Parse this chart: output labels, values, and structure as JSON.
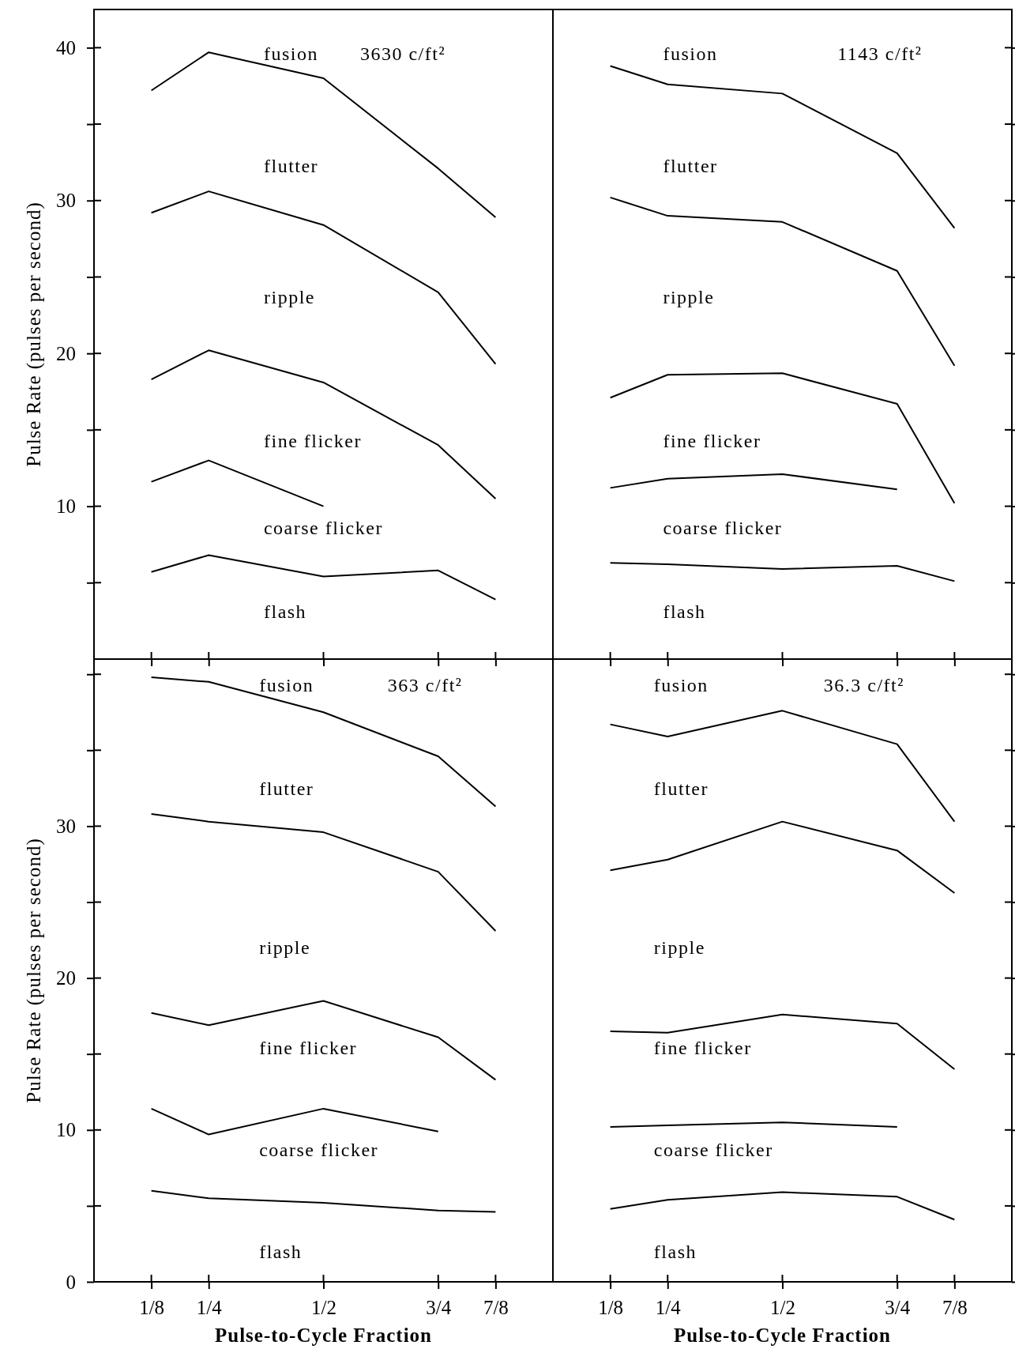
{
  "chart_data": [
    {
      "type": "line",
      "tick_labels": "y",
      "ylabel": "Pulse Rate (pulses per second)",
      "xlim": [
        0,
        1
      ],
      "ylim": [
        0,
        42.5
      ],
      "xticks": [
        {
          "value": 0.125,
          "label": null
        },
        {
          "value": 0.25,
          "label": null
        },
        {
          "value": 0.5,
          "label": null
        },
        {
          "value": 0.75,
          "label": null
        },
        {
          "value": 0.875,
          "label": null
        }
      ],
      "yticks": [
        {
          "value": 5,
          "label": null
        },
        10,
        {
          "value": 15,
          "label": null
        },
        20,
        {
          "value": 25,
          "label": null
        },
        30,
        {
          "value": 35,
          "label": null
        },
        40
      ],
      "series": [
        {
          "color": "#000000",
          "x": [
            0.125,
            0.25,
            0.5,
            0.75,
            0.875
          ],
          "values": [
            37.2,
            39.7,
            38.0,
            32.1,
            28.9
          ]
        },
        {
          "color": "#000000",
          "x": [
            0.125,
            0.25,
            0.5,
            0.75,
            0.875
          ],
          "values": [
            29.2,
            30.6,
            28.4,
            24.0,
            19.3
          ]
        },
        {
          "color": "#000000",
          "x": [
            0.125,
            0.25,
            0.5,
            0.75,
            0.875
          ],
          "values": [
            18.3,
            20.2,
            18.1,
            14.0,
            10.5
          ]
        },
        {
          "color": "#000000",
          "x": [
            0.125,
            0.25,
            0.5
          ],
          "values": [
            11.6,
            13.0,
            10.0
          ]
        },
        {
          "color": "#000000",
          "x": [
            0.125,
            0.25,
            0.5,
            0.75,
            0.875
          ],
          "values": [
            5.7,
            6.8,
            5.4,
            5.8,
            3.9
          ]
        }
      ],
      "annotations": [
        "fusion",
        "3630 c/ft²",
        "flutter",
        "ripple",
        "fine flicker",
        "coarse flicker",
        "flash"
      ]
    },
    {
      "type": "line",
      "tick_labels": false,
      "xlim": [
        0,
        1
      ],
      "ylim": [
        0,
        42.5
      ],
      "xticks": [
        {
          "value": 0.125,
          "label": null
        },
        {
          "value": 0.25,
          "label": null
        },
        {
          "value": 0.5,
          "label": null
        },
        {
          "value": 0.75,
          "label": null
        },
        {
          "value": 0.875,
          "label": null
        }
      ],
      "yticks": [
        {
          "value": 5,
          "label": null
        },
        {
          "value": 10,
          "label": null
        },
        {
          "value": 15,
          "label": null
        },
        {
          "value": 20,
          "label": null
        },
        {
          "value": 25,
          "label": null
        },
        {
          "value": 30,
          "label": null
        },
        {
          "value": 35,
          "label": null
        },
        {
          "value": 40,
          "label": null
        }
      ],
      "series": [
        {
          "color": "#000000",
          "x": [
            0.125,
            0.25,
            0.5,
            0.75,
            0.875
          ],
          "values": [
            38.8,
            37.6,
            37.0,
            33.1,
            28.2
          ]
        },
        {
          "color": "#000000",
          "x": [
            0.125,
            0.25,
            0.5,
            0.75,
            0.875
          ],
          "values": [
            30.2,
            29.0,
            28.6,
            25.4,
            19.2
          ]
        },
        {
          "color": "#000000",
          "x": [
            0.125,
            0.25,
            0.5,
            0.75,
            0.875
          ],
          "values": [
            17.1,
            18.6,
            18.7,
            16.7,
            10.2
          ]
        },
        {
          "color": "#000000",
          "x": [
            0.125,
            0.25,
            0.5,
            0.75
          ],
          "values": [
            11.2,
            11.8,
            12.1,
            11.1
          ]
        },
        {
          "color": "#000000",
          "x": [
            0.125,
            0.25,
            0.5,
            0.75,
            0.875
          ],
          "values": [
            6.3,
            6.2,
            5.9,
            6.1,
            5.1
          ]
        }
      ],
      "annotations": [
        "fusion",
        "1143 c/ft²",
        "flutter",
        "ripple",
        "fine flicker",
        "coarse flicker",
        "flash"
      ]
    },
    {
      "type": "line",
      "ylabel": "Pulse Rate (pulses per second)",
      "xlabel": "Pulse-to-Cycle Fraction",
      "xlim": [
        0,
        1
      ],
      "ylim": [
        0,
        41
      ],
      "xticks": [
        {
          "value": 0.125,
          "label": "1/8"
        },
        {
          "value": 0.25,
          "label": "1/4"
        },
        {
          "value": 0.5,
          "label": "1/2"
        },
        {
          "value": 0.75,
          "label": "3/4"
        },
        {
          "value": 0.875,
          "label": "7/8"
        }
      ],
      "yticks": [
        0,
        {
          "value": 5,
          "label": null
        },
        10,
        {
          "value": 15,
          "label": null
        },
        20,
        {
          "value": 25,
          "label": null
        },
        30,
        {
          "value": 35,
          "label": null
        },
        {
          "value": 40,
          "label": null
        }
      ],
      "series": [
        {
          "color": "#000000",
          "x": [
            0.125,
            0.25,
            0.5,
            0.75,
            0.875
          ],
          "values": [
            39.8,
            39.5,
            37.5,
            34.6,
            31.3
          ]
        },
        {
          "color": "#000000",
          "x": [
            0.125,
            0.25,
            0.5,
            0.75,
            0.875
          ],
          "values": [
            30.8,
            30.3,
            29.6,
            27.0,
            23.1
          ]
        },
        {
          "color": "#000000",
          "x": [
            0.125,
            0.25,
            0.5,
            0.75,
            0.875
          ],
          "values": [
            17.7,
            16.9,
            18.5,
            16.1,
            13.3
          ]
        },
        {
          "color": "#000000",
          "x": [
            0.125,
            0.25,
            0.5,
            0.75
          ],
          "values": [
            11.4,
            9.7,
            11.4,
            9.9
          ]
        },
        {
          "color": "#000000",
          "x": [
            0.125,
            0.25,
            0.5,
            0.75,
            0.875
          ],
          "values": [
            6.0,
            5.5,
            5.2,
            4.7,
            4.6
          ]
        }
      ],
      "annotations": [
        "fusion",
        "363 c/ft²",
        "flutter",
        "ripple",
        "fine flicker",
        "coarse flicker",
        "flash"
      ]
    },
    {
      "type": "line",
      "tick_labels": "x",
      "xlabel": "Pulse-to-Cycle Fraction",
      "xlim": [
        0,
        1
      ],
      "ylim": [
        0,
        41
      ],
      "xticks": [
        {
          "value": 0.125,
          "label": "1/8"
        },
        {
          "value": 0.25,
          "label": "1/4"
        },
        {
          "value": 0.5,
          "label": "1/2"
        },
        {
          "value": 0.75,
          "label": "3/4"
        },
        {
          "value": 0.875,
          "label": "7/8"
        }
      ],
      "yticks": [
        {
          "value": 0,
          "label": null
        },
        {
          "value": 5,
          "label": null
        },
        {
          "value": 10,
          "label": null
        },
        {
          "value": 15,
          "label": null
        },
        {
          "value": 20,
          "label": null
        },
        {
          "value": 25,
          "label": null
        },
        {
          "value": 30,
          "label": null
        },
        {
          "value": 35,
          "label": null
        },
        {
          "value": 40,
          "label": null
        }
      ],
      "series": [
        {
          "color": "#000000",
          "x": [
            0.125,
            0.25,
            0.5,
            0.75,
            0.875
          ],
          "values": [
            36.7,
            35.9,
            37.6,
            35.4,
            30.3
          ]
        },
        {
          "color": "#000000",
          "x": [
            0.125,
            0.25,
            0.5,
            0.75,
            0.875
          ],
          "values": [
            27.1,
            27.8,
            30.3,
            28.4,
            25.6
          ]
        },
        {
          "color": "#000000",
          "x": [
            0.125,
            0.25,
            0.5,
            0.75,
            0.875
          ],
          "values": [
            16.5,
            16.4,
            17.6,
            17.0,
            14.0
          ]
        },
        {
          "color": "#000000",
          "x": [
            0.125,
            0.25,
            0.5,
            0.75
          ],
          "values": [
            10.2,
            10.3,
            10.5,
            10.2
          ]
        },
        {
          "color": "#000000",
          "x": [
            0.125,
            0.25,
            0.5,
            0.75,
            0.875
          ],
          "values": [
            4.8,
            5.4,
            5.9,
            5.6,
            4.1
          ]
        }
      ],
      "annotations": [
        "fusion",
        "36.3 c/ft²",
        "flutter",
        "ripple",
        "fine flicker",
        "coarse flicker",
        "flash"
      ]
    }
  ]
}
